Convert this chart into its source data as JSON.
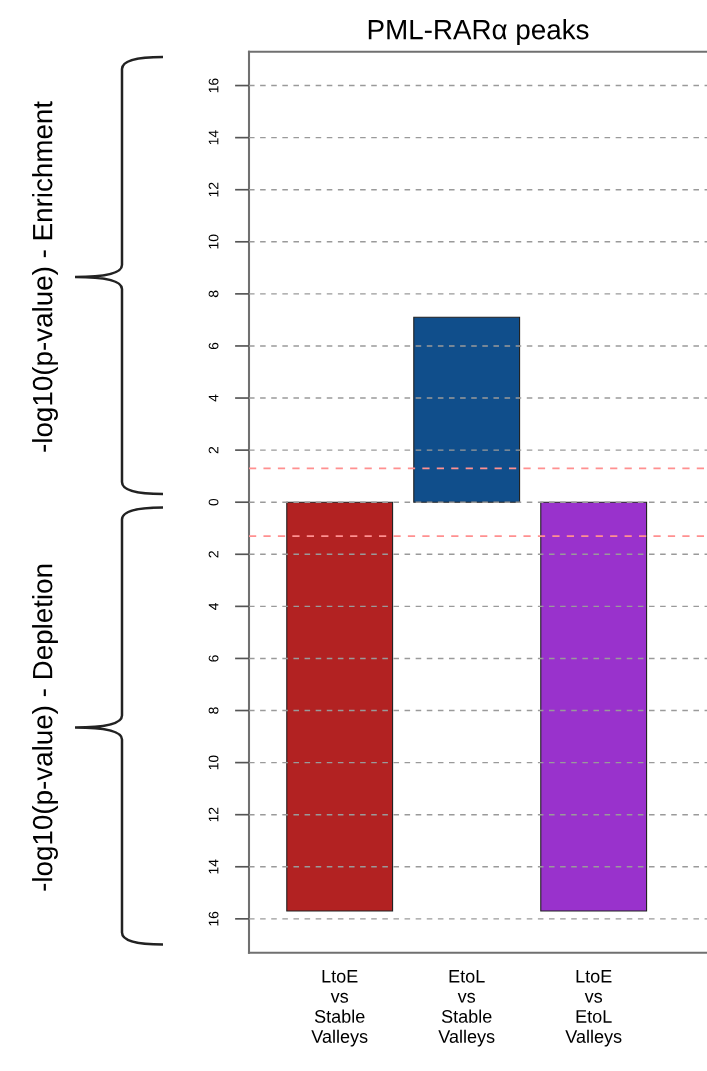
{
  "chart_data": {
    "type": "bar",
    "title": "PML-RARα peaks",
    "categories": [
      "LtoE\nvs\nStable\nValleys",
      "EtoL\nvs\nStable\nValleys",
      "LtoE\nvs\nEtoL\nValleys"
    ],
    "values": [
      -15.7,
      7.1,
      -15.7
    ],
    "colors": [
      "#b22222",
      "#104e8b",
      "#9932cc"
    ],
    "ylim": [
      -17.3,
      17.3
    ],
    "yticks": [
      {
        "value": -16,
        "label": "16"
      },
      {
        "value": -14,
        "label": "14"
      },
      {
        "value": -12,
        "label": "12"
      },
      {
        "value": -10,
        "label": "10"
      },
      {
        "value": -8,
        "label": "8"
      },
      {
        "value": -6,
        "label": "6"
      },
      {
        "value": -4,
        "label": "4"
      },
      {
        "value": -2,
        "label": "2"
      },
      0,
      2,
      4,
      6,
      8,
      10,
      12,
      14,
      16
    ],
    "grid": "y",
    "ref_lines": [
      {
        "axis": "y",
        "value": 1.3,
        "color": "#ff9090",
        "line_style": "dashed"
      },
      {
        "axis": "y",
        "value": -1.3,
        "color": "#ff9090",
        "line_style": "dashed"
      }
    ],
    "annotations": [
      "-log10(p-value) - Enrichment",
      "-log10(p-value) - Depletion"
    ]
  }
}
